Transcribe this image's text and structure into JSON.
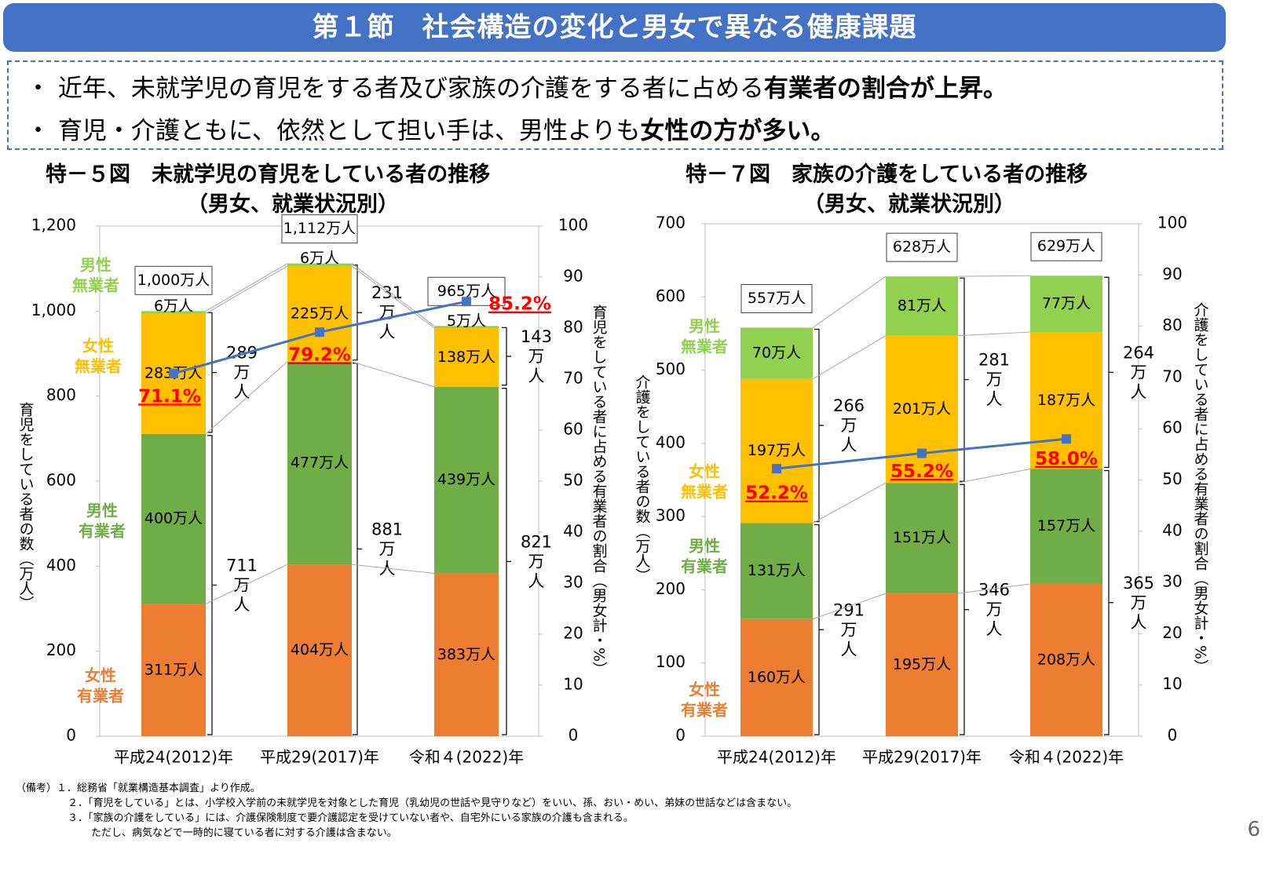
{
  "header": {
    "title": "第１節　社会構造の変化と男女で異なる健康課題"
  },
  "bullets": [
    {
      "text": "・ 近年、未就学児の育児をする者及び家族の介護をする者に占める",
      "bold": "有業者の割合が上昇。"
    },
    {
      "text": "・ 育児・介護ともに、依然として担い手は、男性よりも",
      "bold": "女性の方が多い。"
    }
  ],
  "colors": {
    "female_employed": "#ED7D31",
    "male_employed": "#70AD47",
    "female_unemployed": "#FFC000",
    "male_unemployed": "#92D050",
    "line": "#4472C4",
    "pct_label": "#FF0000",
    "title_bar": "#4472C4"
  },
  "chart_data": [
    {
      "type": "bar",
      "stacked": true,
      "title": "特－５図　未就学児の育児をしている者の推移",
      "subtitle": "（男女、就業状況別）",
      "categories": [
        "平成24(2012)年",
        "平成29(2017)年",
        "令和４(2022)年"
      ],
      "ylabel": "育児をしている者の数（万人）",
      "y2label": "育児をしている者に占める有業者の割合（男女計・%）",
      "ylim": [
        0,
        1200
      ],
      "yticks": [
        "0",
        "200",
        "400",
        "600",
        "800",
        "1,000",
        "1,200"
      ],
      "y2lim": [
        0,
        100
      ],
      "y2ticks": [
        "0",
        "10",
        "20",
        "30",
        "40",
        "50",
        "60",
        "70",
        "80",
        "90",
        "100"
      ],
      "series": [
        {
          "name": "女性有業者",
          "values": [
            311,
            404,
            383
          ],
          "labels": [
            "311万人",
            "404万人",
            "383万人"
          ]
        },
        {
          "name": "男性有業者",
          "values": [
            400,
            477,
            439
          ],
          "labels": [
            "400万人",
            "477万人",
            "439万人"
          ]
        },
        {
          "name": "女性無業者",
          "values": [
            283,
            225,
            138
          ],
          "labels": [
            "283万人",
            "225万人",
            "138万人"
          ]
        },
        {
          "name": "男性無業者",
          "values": [
            6,
            6,
            5
          ],
          "labels": [
            "6万人",
            "6万人",
            "5万人"
          ]
        }
      ],
      "totals": [
        "1,000万人",
        "1,112万人",
        "965万人"
      ],
      "employed_brackets": [
        [
          "711",
          "万",
          "人"
        ],
        [
          "881",
          "万",
          "人"
        ],
        [
          "821",
          "万",
          "人"
        ]
      ],
      "unemployed_brackets": [
        [
          "289",
          "万",
          "人"
        ],
        [
          "231",
          "万",
          "人"
        ],
        [
          "143",
          "万",
          "人"
        ]
      ],
      "line": {
        "values": [
          71.1,
          79.2,
          85.2
        ],
        "labels": [
          "71.1%",
          "79.2%",
          "85.2%"
        ]
      },
      "grid": false
    },
    {
      "type": "bar",
      "stacked": true,
      "title": "特－７図　家族の介護をしている者の推移",
      "subtitle": "（男女、就業状況別）",
      "categories": [
        "平成24(2012)年",
        "平成29(2017)年",
        "令和４(2022)年"
      ],
      "ylabel": "介護をしている者の数（万人）",
      "y2label": "介護をしている者に占める有業者の割合（男女計・%）",
      "ylim": [
        0,
        700
      ],
      "yticks": [
        "0",
        "100",
        "200",
        "300",
        "400",
        "500",
        "600",
        "700"
      ],
      "y2lim": [
        0,
        100
      ],
      "y2ticks": [
        "0",
        "10",
        "20",
        "30",
        "40",
        "50",
        "60",
        "70",
        "80",
        "90",
        "100"
      ],
      "series": [
        {
          "name": "女性有業者",
          "values": [
            160,
            195,
            208
          ],
          "labels": [
            "160万人",
            "195万人",
            "208万人"
          ]
        },
        {
          "name": "男性有業者",
          "values": [
            131,
            151,
            157
          ],
          "labels": [
            "131万人",
            "151万人",
            "157万人"
          ]
        },
        {
          "name": "女性無業者",
          "values": [
            197,
            201,
            187
          ],
          "labels": [
            "197万人",
            "201万人",
            "187万人"
          ]
        },
        {
          "name": "男性無業者",
          "values": [
            70,
            81,
            77
          ],
          "labels": [
            "70万人",
            "81万人",
            "77万人"
          ]
        }
      ],
      "totals": [
        "557万人",
        "628万人",
        "629万人"
      ],
      "employed_brackets": [
        [
          "291",
          "万",
          "人"
        ],
        [
          "346",
          "万",
          "人"
        ],
        [
          "365",
          "万",
          "人"
        ]
      ],
      "unemployed_brackets": [
        [
          "266",
          "万",
          "人"
        ],
        [
          "281",
          "万",
          "人"
        ],
        [
          "264",
          "万",
          "人"
        ]
      ],
      "line": {
        "values": [
          52.2,
          55.2,
          58.0
        ],
        "labels": [
          "52.2%",
          "55.2%",
          "58.0%"
        ]
      },
      "grid": false
    }
  ],
  "legend_labels": [
    [
      "男性",
      "無業者"
    ],
    [
      "女性",
      "無業者"
    ],
    [
      "男性",
      "有業者"
    ],
    [
      "女性",
      "有業者"
    ]
  ],
  "footnotes": [
    "（備考）１．総務省「就業構造基本調査」より作成。",
    "２．「育児をしている」とは、小学校入学前の未就学児を対象とした育児（乳幼児の世話や見守りなど）をいい、孫、おい・めい、弟妹の世話などは含まない。",
    "３．「家族の介護をしている」には、介護保険制度で要介護認定を受けていない者や、自宅外にいる家族の介護も含まれる。",
    "ただし、病気などで一時的に寝ている者に対する介護は含まない。"
  ],
  "page_number": "6"
}
